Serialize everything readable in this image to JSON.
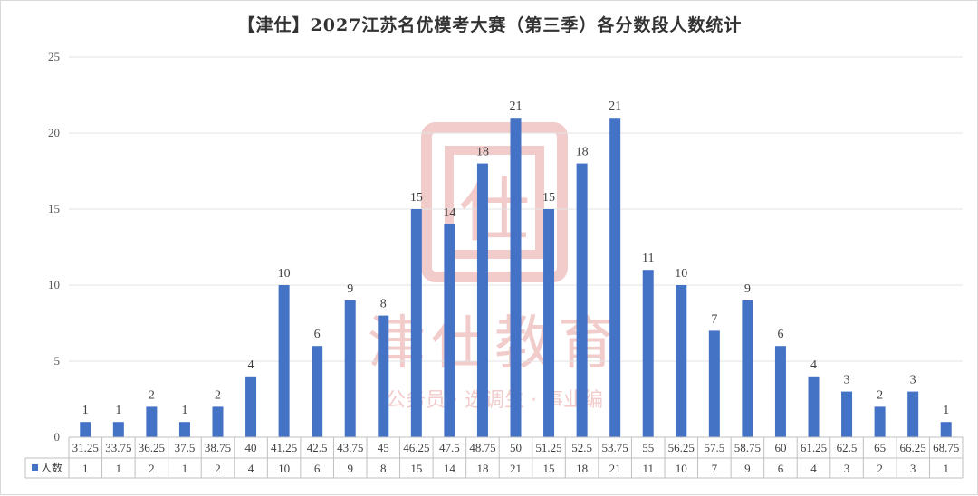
{
  "chart_data": {
    "type": "bar",
    "title": "【津仕】2027江苏名优模考大赛（第三季）各分数段人数统计",
    "categories": [
      "31.25",
      "33.75",
      "36.25",
      "37.5",
      "38.75",
      "40",
      "41.25",
      "42.5",
      "43.75",
      "45",
      "46.25",
      "47.5",
      "48.75",
      "50",
      "51.25",
      "52.5",
      "53.75",
      "55",
      "56.25",
      "57.5",
      "58.75",
      "60",
      "61.25",
      "62.5",
      "65",
      "66.25",
      "68.75"
    ],
    "series": [
      {
        "name": "人数",
        "values": [
          1,
          1,
          2,
          1,
          2,
          4,
          10,
          6,
          9,
          8,
          15,
          14,
          18,
          21,
          15,
          18,
          21,
          11,
          10,
          7,
          9,
          6,
          4,
          3,
          2,
          3,
          1
        ]
      }
    ],
    "ylim": [
      0,
      25
    ],
    "yticks": [
      0,
      5,
      10,
      15,
      20,
      25
    ],
    "grid": true,
    "legend_placement": "data-table",
    "colors": {
      "bar": "#4472c4",
      "grid": "#e3e3e3",
      "watermark": "#e9a2a2"
    }
  },
  "watermark": {
    "logo_text": "仕",
    "brand": "津仕教育",
    "tagline": "公务员 · 选调生 · 事业编"
  }
}
